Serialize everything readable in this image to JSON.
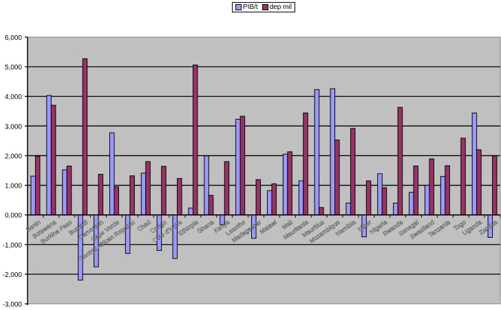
{
  "chart_data": {
    "type": "bar",
    "title": "",
    "xlabel": "",
    "ylabel": "",
    "ylim": [
      -3000,
      6000
    ],
    "yticks": [
      -3000,
      -2000,
      -1000,
      0,
      1000,
      2000,
      3000,
      4000,
      5000,
      6000
    ],
    "ytick_labels": [
      "-3,000",
      "-2,000",
      "-1,000",
      "0,000",
      "1,000",
      "2,000",
      "3,000",
      "4,000",
      "5,000",
      "6,000"
    ],
    "grid": true,
    "legend_position": "top-center",
    "categories": [
      "Benin",
      "Botswana",
      "Burkina Faso",
      "Burundi",
      "Cameroon",
      "Cape Verde",
      "Central African Republic",
      "Chad",
      "Congo",
      "Cote d'Ivoire",
      "Ethiopia",
      "Ghana",
      "Kenya",
      "Lesotho",
      "Madagascar",
      "Malawi",
      "Mali",
      "Mauritania",
      "Mauritius",
      "Mozambique",
      "Namibia",
      "Niger",
      "Nigeria",
      "Rwanda",
      "Senegal",
      "Swaziland",
      "Tanzania",
      "Togo",
      "Uganda",
      "Zambia"
    ],
    "series": [
      {
        "name": "PIB/t",
        "color": "#9999ff",
        "values": [
          1310,
          4030,
          1520,
          -2200,
          -1750,
          2770,
          -1300,
          1410,
          -1200,
          -1470,
          230,
          1990,
          -330,
          3230,
          -790,
          820,
          2050,
          1150,
          4230,
          4260,
          400,
          -740,
          1390,
          400,
          760,
          1000,
          1300,
          0,
          3440,
          -760
        ]
      },
      {
        "name": "dep mil",
        "color": "#993366",
        "values": [
          1980,
          3700,
          1650,
          5270,
          1370,
          950,
          1320,
          1800,
          1640,
          1230,
          5060,
          660,
          1800,
          3330,
          1190,
          1050,
          2130,
          3440,
          250,
          2530,
          2920,
          1150,
          920,
          3630,
          1650,
          1890,
          1660,
          2590,
          2200,
          1990
        ]
      }
    ]
  }
}
